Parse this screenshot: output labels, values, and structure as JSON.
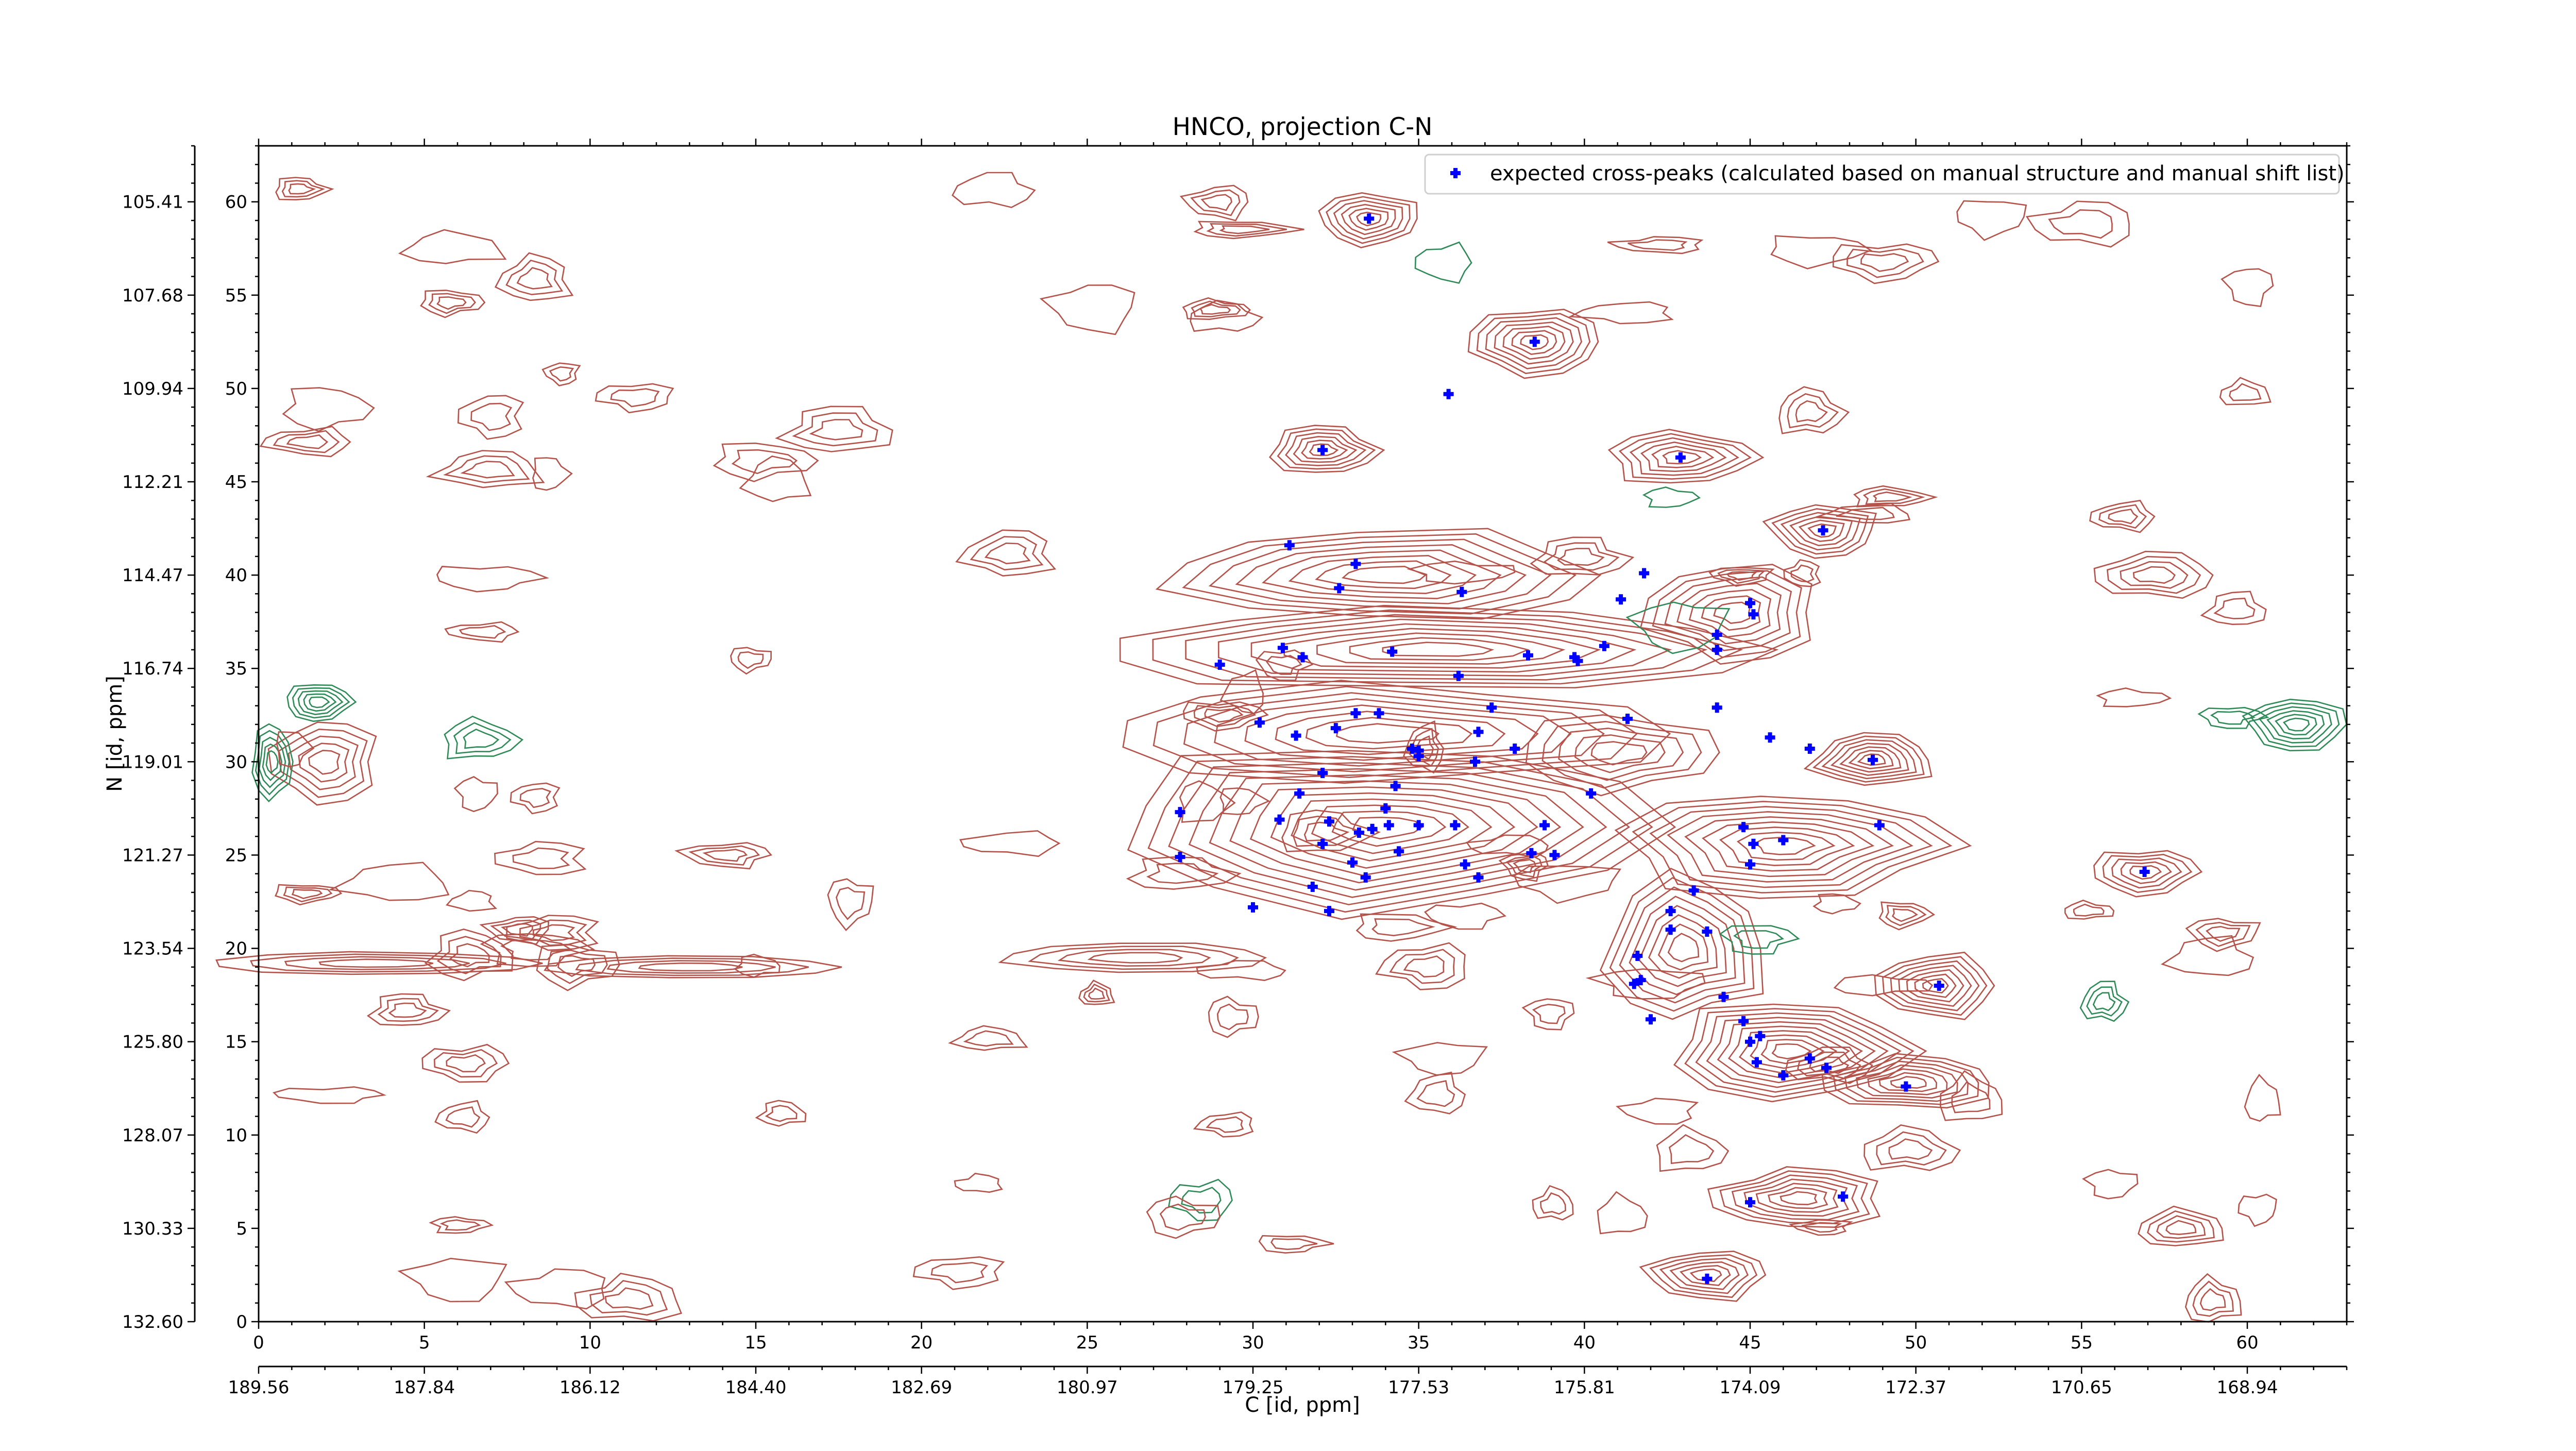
{
  "chart_data": {
    "type": "scatter",
    "title": "HNCO, projection C-N",
    "xlabel": "C [id, ppm]",
    "ylabel": "N [id, ppm]",
    "xlim": [
      0,
      63
    ],
    "ylim": [
      0,
      63
    ],
    "x_index_ticks": [
      0,
      5,
      10,
      15,
      20,
      25,
      30,
      35,
      40,
      45,
      50,
      55,
      60
    ],
    "y_index_ticks": [
      0,
      5,
      10,
      15,
      20,
      25,
      30,
      35,
      40,
      45,
      50,
      55,
      60
    ],
    "x_ppm_ticks": [
      {
        "index": 0,
        "label": "189.56"
      },
      {
        "index": 5,
        "label": "187.84"
      },
      {
        "index": 10,
        "label": "186.12"
      },
      {
        "index": 15,
        "label": "184.40"
      },
      {
        "index": 20,
        "label": "182.69"
      },
      {
        "index": 25,
        "label": "180.97"
      },
      {
        "index": 30,
        "label": "179.25"
      },
      {
        "index": 35,
        "label": "177.53"
      },
      {
        "index": 40,
        "label": "175.81"
      },
      {
        "index": 45,
        "label": "174.09"
      },
      {
        "index": 50,
        "label": "172.37"
      },
      {
        "index": 55,
        "label": "170.65"
      },
      {
        "index": 60,
        "label": "168.94"
      }
    ],
    "y_ppm_ticks": [
      {
        "index": 0,
        "label": "132.60"
      },
      {
        "index": 5,
        "label": "130.33"
      },
      {
        "index": 10,
        "label": "128.07"
      },
      {
        "index": 15,
        "label": "125.80"
      },
      {
        "index": 20,
        "label": "123.54"
      },
      {
        "index": 25,
        "label": "121.27"
      },
      {
        "index": 30,
        "label": "119.01"
      },
      {
        "index": 35,
        "label": "116.74"
      },
      {
        "index": 40,
        "label": "114.47"
      },
      {
        "index": 45,
        "label": "112.21"
      },
      {
        "index": 50,
        "label": "109.94"
      },
      {
        "index": 55,
        "label": "107.68"
      },
      {
        "index": 60,
        "label": "105.41"
      }
    ],
    "legend": {
      "label": "expected cross-peaks (calculated based on manual structure and manual shift list)",
      "position": "top-right"
    },
    "colors": {
      "peaks": "#0000ff",
      "positive_contour": "#b5524a",
      "negative_contour": "#2e8b57",
      "background": "#ffffff"
    },
    "grid": false,
    "series": [
      {
        "name": "expected cross-peaks (calculated based on manual structure and manual shift list)",
        "points": [
          [
            33.5,
            59.1
          ],
          [
            38.5,
            52.5
          ],
          [
            35.9,
            49.7
          ],
          [
            32.1,
            46.7
          ],
          [
            42.9,
            46.3
          ],
          [
            47.2,
            42.4
          ],
          [
            31.1,
            41.6
          ],
          [
            33.1,
            40.6
          ],
          [
            32.6,
            39.3
          ],
          [
            36.3,
            39.1
          ],
          [
            41.8,
            40.1
          ],
          [
            41.1,
            38.7
          ],
          [
            45.0,
            38.5
          ],
          [
            45.1,
            37.9
          ],
          [
            29.0,
            35.2
          ],
          [
            30.9,
            36.1
          ],
          [
            31.5,
            35.6
          ],
          [
            34.2,
            35.9
          ],
          [
            36.2,
            34.6
          ],
          [
            38.3,
            35.7
          ],
          [
            39.7,
            35.6
          ],
          [
            39.8,
            35.4
          ],
          [
            40.6,
            36.2
          ],
          [
            44.0,
            36.8
          ],
          [
            44.0,
            36.0
          ],
          [
            30.2,
            32.1
          ],
          [
            31.3,
            31.4
          ],
          [
            32.5,
            31.8
          ],
          [
            33.1,
            32.6
          ],
          [
            33.8,
            32.6
          ],
          [
            37.2,
            32.9
          ],
          [
            36.8,
            31.6
          ],
          [
            34.8,
            30.7
          ],
          [
            35.0,
            30.6
          ],
          [
            35.0,
            30.3
          ],
          [
            36.7,
            30.0
          ],
          [
            37.9,
            30.7
          ],
          [
            41.3,
            32.3
          ],
          [
            44.0,
            32.9
          ],
          [
            45.6,
            31.3
          ],
          [
            46.8,
            30.7
          ],
          [
            48.7,
            30.1
          ],
          [
            27.8,
            27.3
          ],
          [
            31.4,
            28.3
          ],
          [
            32.1,
            29.4
          ],
          [
            34.3,
            28.7
          ],
          [
            34.0,
            27.5
          ],
          [
            30.8,
            26.9
          ],
          [
            32.3,
            26.8
          ],
          [
            33.2,
            26.2
          ],
          [
            33.6,
            26.4
          ],
          [
            34.1,
            26.6
          ],
          [
            35.0,
            26.6
          ],
          [
            36.1,
            26.6
          ],
          [
            38.8,
            26.6
          ],
          [
            40.2,
            28.3
          ],
          [
            44.8,
            26.5
          ],
          [
            48.9,
            26.6
          ],
          [
            27.8,
            24.9
          ],
          [
            32.1,
            25.6
          ],
          [
            33.0,
            24.6
          ],
          [
            33.4,
            23.8
          ],
          [
            34.4,
            25.2
          ],
          [
            36.4,
            24.5
          ],
          [
            36.8,
            23.8
          ],
          [
            38.4,
            25.1
          ],
          [
            39.1,
            25.0
          ],
          [
            45.1,
            25.6
          ],
          [
            46.0,
            25.8
          ],
          [
            45.0,
            24.5
          ],
          [
            30.0,
            22.2
          ],
          [
            31.8,
            23.3
          ],
          [
            32.3,
            22.0
          ],
          [
            43.3,
            23.1
          ],
          [
            42.6,
            22.0
          ],
          [
            42.6,
            21.0
          ],
          [
            41.6,
            19.6
          ],
          [
            43.7,
            20.9
          ],
          [
            41.5,
            18.1
          ],
          [
            41.7,
            18.3
          ],
          [
            42.0,
            16.2
          ],
          [
            44.2,
            17.4
          ],
          [
            44.8,
            16.1
          ],
          [
            45.0,
            15.0
          ],
          [
            45.3,
            15.3
          ],
          [
            45.2,
            13.9
          ],
          [
            46.0,
            13.2
          ],
          [
            46.8,
            14.1
          ],
          [
            47.3,
            13.6
          ],
          [
            49.7,
            12.6
          ],
          [
            50.7,
            18.0
          ],
          [
            56.9,
            24.1
          ],
          [
            45.0,
            6.4
          ],
          [
            47.8,
            6.7
          ],
          [
            43.7,
            2.3
          ]
        ]
      }
    ]
  }
}
